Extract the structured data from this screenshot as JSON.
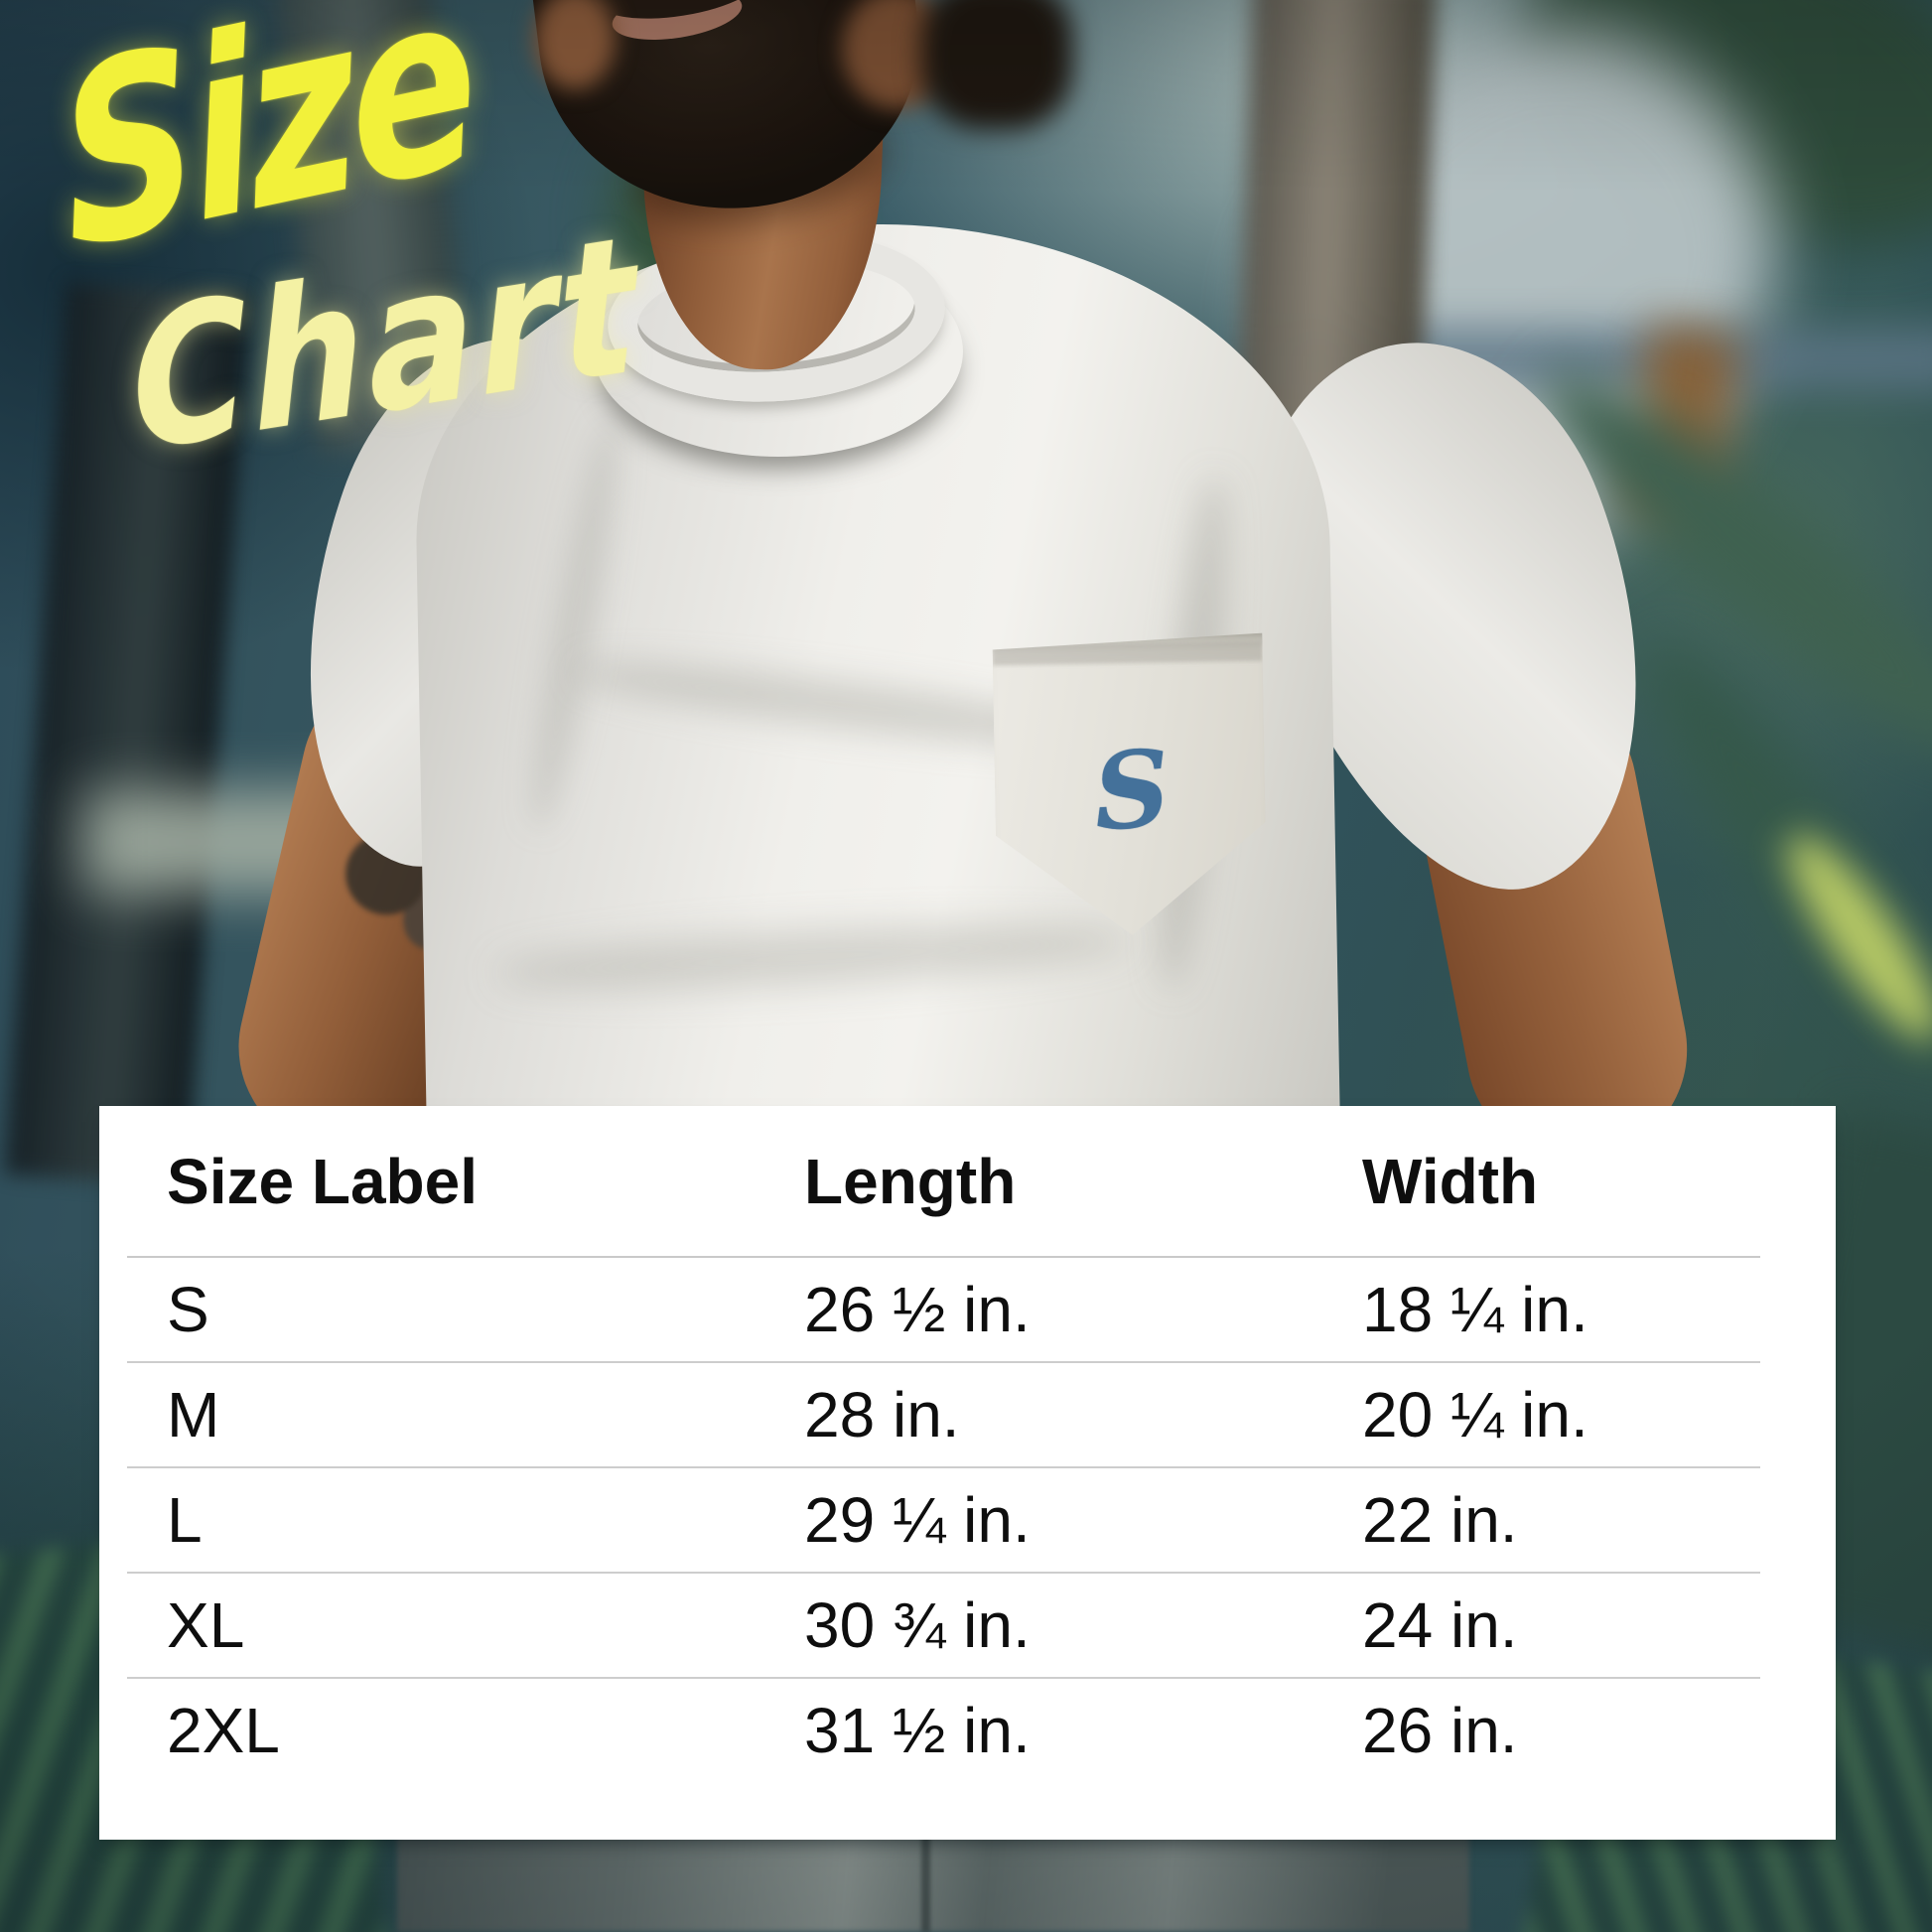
{
  "title": {
    "line1": "Size",
    "line2": "Chart"
  },
  "brand": {
    "pocket_logo_letter": "S"
  },
  "size_table": {
    "headers": {
      "size": "Size Label",
      "length": "Length",
      "width": "Width"
    },
    "rows": [
      {
        "size": "S",
        "length": "26 ½ in.",
        "width": "18 ¼ in."
      },
      {
        "size": "M",
        "length": "28 in.",
        "width": "20 ¼ in."
      },
      {
        "size": "L",
        "length": "29 ¼ in.",
        "width": "22 in."
      },
      {
        "size": "XL",
        "length": "30 ¾ in.",
        "width": "24 in."
      },
      {
        "size": "2XL",
        "length": "31 ½ in.",
        "width": "26 in."
      }
    ]
  },
  "chart_data": {
    "type": "table",
    "title": "Size Chart",
    "columns": [
      "Size Label",
      "Length",
      "Width"
    ],
    "rows": [
      [
        "S",
        "26 ½ in.",
        "18 ¼ in."
      ],
      [
        "M",
        "28 in.",
        "20 ¼ in."
      ],
      [
        "L",
        "29 ¼ in.",
        "22 in."
      ],
      [
        "XL",
        "30 ¾ in.",
        "24 in."
      ],
      [
        "2XL",
        "31 ½ in.",
        "26 in."
      ]
    ],
    "numeric": {
      "sizes": [
        "S",
        "M",
        "L",
        "XL",
        "2XL"
      ],
      "length_in": [
        26.5,
        28,
        29.25,
        30.75,
        31.5
      ],
      "width_in": [
        18.25,
        20.25,
        22,
        24,
        26
      ]
    },
    "units": "inches"
  },
  "colors": {
    "accent_yellow": "#F2F13A",
    "accent_yellow_pale": "#F4F1A4",
    "logo_blue": "#44719A",
    "panel_bg": "#FFFFFF",
    "table_text": "#0E0E0E",
    "divider": "#CDCDCD"
  }
}
